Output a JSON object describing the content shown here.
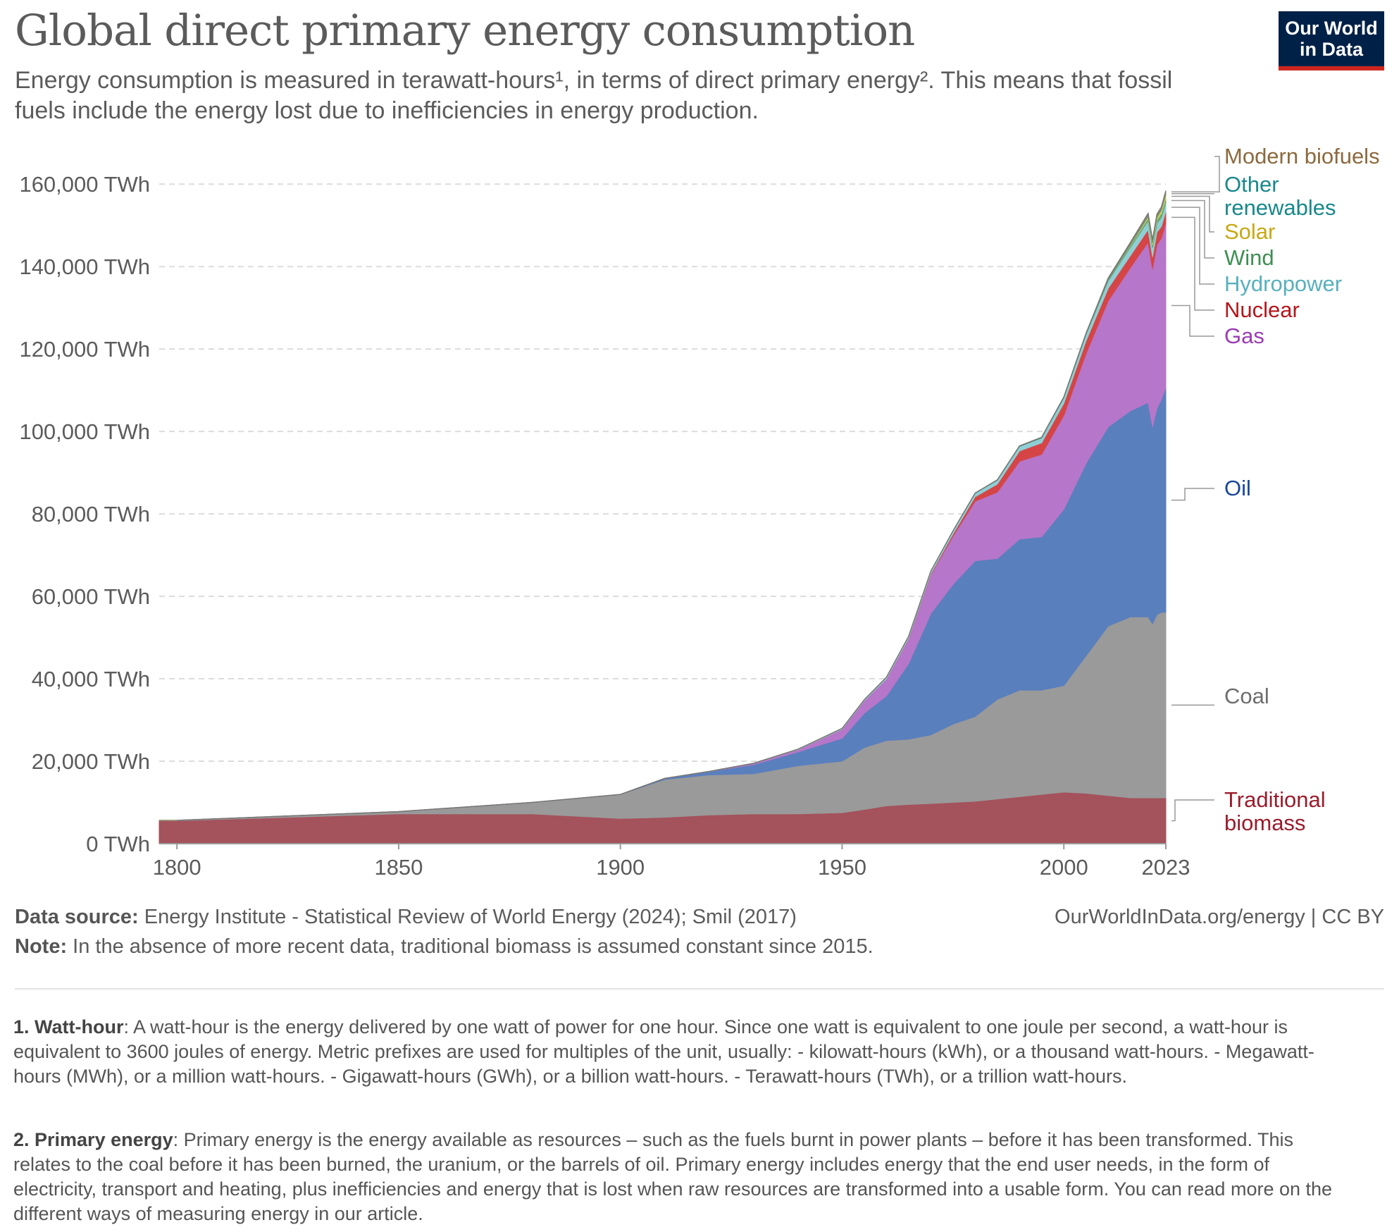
{
  "header": {
    "title": "Global direct primary energy consumption",
    "subtitle": "Energy consumption is measured in terawatt-hours¹, in terms of direct primary energy². This means that fossil fuels include the energy lost due to inefficiencies in energy production.",
    "logo_line1": "Our World",
    "logo_line2": "in Data"
  },
  "footer": {
    "source_label": "Data source:",
    "source_text": "Energy Institute - Statistical Review of World Energy (2024); Smil (2017)",
    "url": "OurWorldInData.org/energy",
    "license": "| CC BY",
    "note_label": "Note:",
    "note_text": "In the absence of more recent data, traditional biomass is assumed constant since 2015."
  },
  "footnotes": [
    {
      "label": "1. Watt-hour",
      "text": ": A watt-hour is the energy delivered by one watt of power for one hour. Since one watt is equivalent to one joule per second, a watt-hour is equivalent to 3600 joules of energy. Metric prefixes are used for multiples of the unit, usually: - kilowatt-hours (kWh), or a thousand watt-hours. - Megawatt-hours (MWh), or a million watt-hours. - Gigawatt-hours (GWh), or a billion watt-hours. - Terawatt-hours (TWh), or a trillion watt-hours."
    },
    {
      "label": "2. Primary energy",
      "text": ": Primary energy is the energy available as resources – such as the fuels burnt in power plants – before it has been transformed. This relates to the coal before it has been burned, the uranium, or the barrels of oil. Primary energy includes energy that the end user needs, in the form of electricity, transport and heating, plus inefficiencies and energy that is lost when raw resources are transformed into a usable form. You can read more on the different ways of measuring energy in our article."
    }
  ],
  "chart_data": {
    "type": "area",
    "stacked": true,
    "title": "Global direct primary energy consumption",
    "unit": "TWh",
    "ylim": [
      0,
      165000
    ],
    "grid": true,
    "legend_placement": "right (inline labels)",
    "yticks": [
      0,
      20000,
      40000,
      60000,
      80000,
      100000,
      120000,
      140000,
      160000
    ],
    "ytick_labels": [
      "0 TWh",
      "20,000 TWh",
      "40,000 TWh",
      "60,000 TWh",
      "80,000 TWh",
      "100,000 TWh",
      "120,000 TWh",
      "140,000 TWh",
      "160,000 TWh"
    ],
    "xticks": [
      1800,
      1850,
      1900,
      1950,
      2000,
      2023
    ],
    "xtick_labels": [
      "1800",
      "1850",
      "1900",
      "1950",
      "2000",
      "2023"
    ],
    "xlim": [
      1800,
      2023
    ],
    "x": [
      1800,
      1850,
      1880,
      1900,
      1910,
      1920,
      1930,
      1940,
      1950,
      1955,
      1960,
      1965,
      1970,
      1975,
      1980,
      1985,
      1990,
      1995,
      2000,
      2005,
      2010,
      2015,
      2019,
      2020,
      2021,
      2022,
      2023
    ],
    "series": [
      {
        "name": "Traditional biomass",
        "color": "#a4525c",
        "label_color": "#9a1c2c",
        "values": [
          5556,
          7222,
          7222,
          6111,
          6389,
          6944,
          7222,
          7222,
          7500,
          8300,
          9167,
          9500,
          9722,
          10000,
          10278,
          10833,
          11389,
          11944,
          12500,
          12222,
          11667,
          11111,
          11111,
          11111,
          11111,
          11111,
          11111
        ]
      },
      {
        "name": "Coal",
        "color": "#9a9a9a",
        "label_color": "#6e6e6e",
        "values": [
          97,
          556,
          2778,
          5833,
          9167,
          9722,
          9722,
          11667,
          12500,
          15000,
          15833,
          15833,
          16667,
          19000,
          20556,
          24167,
          25833,
          25278,
          25833,
          33333,
          41111,
          43889,
          43889,
          42222,
          44444,
          45000,
          45000
        ]
      },
      {
        "name": "Oil",
        "color": "#5a7fbd",
        "label_color": "#18469a",
        "values": [
          0,
          0,
          0,
          0,
          278,
          833,
          2222,
          3333,
          5556,
          8333,
          10833,
          18333,
          29444,
          33889,
          37778,
          34167,
          36667,
          37222,
          42778,
          46667,
          48333,
          50000,
          52000,
          47778,
          50000,
          51667,
          54444
        ]
      },
      {
        "name": "Gas",
        "color": "#b676c9",
        "label_color": "#9b3bb5",
        "values": [
          0,
          0,
          0,
          0,
          0,
          0,
          278,
          556,
          2222,
          3056,
          4167,
          6111,
          9444,
          11667,
          14444,
          16111,
          18889,
          20000,
          22778,
          26667,
          30556,
          34722,
          38889,
          38333,
          39722,
          39167,
          40000
        ]
      },
      {
        "name": "Nuclear",
        "color": "#d64545",
        "label_color": "#b4161b",
        "values": [
          0,
          0,
          0,
          0,
          0,
          0,
          0,
          0,
          0,
          0,
          0,
          72,
          222,
          556,
          1111,
          1944,
          2500,
          2778,
          2917,
          3056,
          3056,
          2917,
          3056,
          2917,
          3056,
          2778,
          2778
        ]
      },
      {
        "name": "Hydropower",
        "color": "#8fcfd6",
        "label_color": "#57b0bd",
        "values": [
          0,
          0,
          0,
          0,
          0,
          28,
          56,
          111,
          194,
          250,
          361,
          472,
          611,
          722,
          833,
          944,
          1083,
          1194,
          1333,
          1500,
          1750,
          1944,
          2083,
          2139,
          2111,
          2167,
          2111
        ]
      },
      {
        "name": "Wind",
        "color": "#6aa877",
        "label_color": "#3d8f52",
        "values": [
          0,
          0,
          0,
          0,
          0,
          0,
          0,
          0,
          0,
          0,
          0,
          0,
          0,
          0,
          0,
          0,
          0,
          0,
          14,
          56,
          194,
          444,
          694,
          778,
          917,
          1056,
          1167
        ]
      },
      {
        "name": "Solar",
        "color": "#e6d14a",
        "label_color": "#c8a814",
        "values": [
          0,
          0,
          0,
          0,
          0,
          0,
          0,
          0,
          0,
          0,
          0,
          0,
          0,
          0,
          0,
          0,
          0,
          0,
          0,
          0,
          17,
          139,
          389,
          458,
          556,
          694,
          889
        ]
      },
      {
        "name": "Other renewables",
        "color": "#3d9c9c",
        "label_color": "#18888a",
        "values": [
          0,
          0,
          0,
          0,
          0,
          0,
          0,
          0,
          0,
          0,
          0,
          0,
          14,
          28,
          56,
          83,
          111,
          139,
          167,
          194,
          250,
          306,
          333,
          333,
          361,
          361,
          361
        ]
      },
      {
        "name": "Modern biofuels",
        "color": "#a8845a",
        "label_color": "#8c6a3e",
        "values": [
          0,
          0,
          0,
          0,
          0,
          0,
          0,
          0,
          0,
          0,
          0,
          0,
          0,
          0,
          0,
          14,
          28,
          42,
          56,
          111,
          278,
          361,
          444,
          417,
          444,
          472,
          500
        ]
      }
    ]
  }
}
